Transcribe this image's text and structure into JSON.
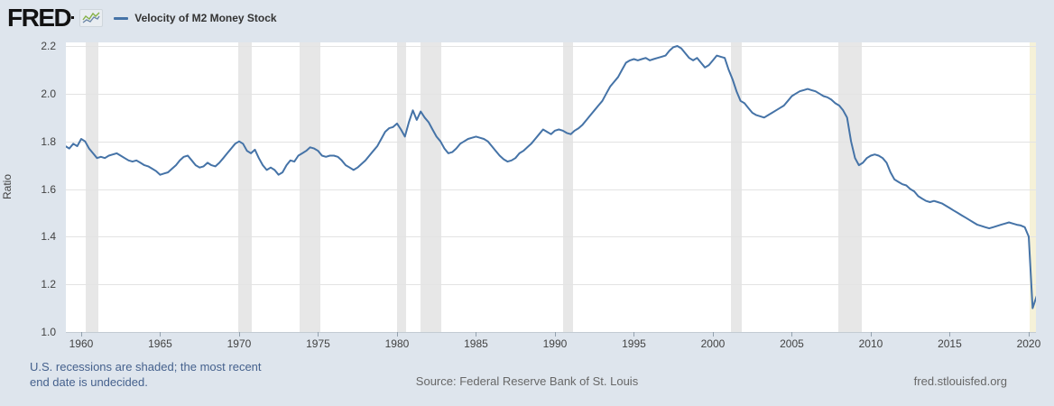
{
  "header": {
    "logo_text": "FRED",
    "legend_series": "Velocity of M2 Money Stock"
  },
  "footer": {
    "recession_note_line1": "U.S. recessions are shaded; the most recent",
    "recession_note_line2": "end date is undecided.",
    "source": "Source: Federal Reserve Bank of St. Louis",
    "site": "fred.stlouisfed.org"
  },
  "colors": {
    "line": "#4573a7",
    "recession_band": "#e7e7e7",
    "undecided_band": "#f5f1d8",
    "background": "#dee5ed",
    "plot_background": "#ffffff",
    "note_text": "#45618d",
    "logo_green": "#86b146",
    "logo_blue": "#6d87a8"
  },
  "chart_data": {
    "type": "line",
    "title": "Velocity of M2 Money Stock",
    "xlabel": "",
    "ylabel": "Ratio",
    "x_range": [
      1959.03,
      2020.46
    ],
    "y_range": [
      1.0,
      2.2
    ],
    "x_ticks": [
      1960,
      1965,
      1970,
      1975,
      1980,
      1985,
      1990,
      1995,
      2000,
      2005,
      2010,
      2015,
      2020
    ],
    "y_ticks": [
      1.0,
      1.2,
      1.4,
      1.6,
      1.8,
      2.0,
      2.2
    ],
    "grid": "horizontal",
    "legend_position": "top-left",
    "frequency": "quarterly",
    "start": 1959.0,
    "values": [
      1.78,
      1.77,
      1.79,
      1.78,
      1.81,
      1.8,
      1.77,
      1.75,
      1.73,
      1.735,
      1.73,
      1.74,
      1.745,
      1.75,
      1.74,
      1.73,
      1.72,
      1.715,
      1.72,
      1.71,
      1.7,
      1.695,
      1.685,
      1.675,
      1.66,
      1.665,
      1.67,
      1.685,
      1.7,
      1.72,
      1.735,
      1.74,
      1.72,
      1.7,
      1.69,
      1.695,
      1.71,
      1.7,
      1.695,
      1.71,
      1.73,
      1.75,
      1.77,
      1.79,
      1.8,
      1.79,
      1.76,
      1.75,
      1.765,
      1.73,
      1.7,
      1.68,
      1.69,
      1.68,
      1.66,
      1.67,
      1.7,
      1.72,
      1.715,
      1.74,
      1.75,
      1.76,
      1.775,
      1.77,
      1.76,
      1.74,
      1.735,
      1.74,
      1.74,
      1.735,
      1.72,
      1.7,
      1.69,
      1.68,
      1.69,
      1.705,
      1.72,
      1.74,
      1.76,
      1.78,
      1.81,
      1.84,
      1.855,
      1.86,
      1.875,
      1.85,
      1.82,
      1.88,
      1.93,
      1.89,
      1.925,
      1.9,
      1.88,
      1.85,
      1.82,
      1.8,
      1.77,
      1.75,
      1.755,
      1.77,
      1.79,
      1.8,
      1.81,
      1.815,
      1.82,
      1.815,
      1.81,
      1.8,
      1.78,
      1.76,
      1.74,
      1.725,
      1.715,
      1.72,
      1.73,
      1.75,
      1.76,
      1.775,
      1.79,
      1.81,
      1.83,
      1.85,
      1.84,
      1.83,
      1.845,
      1.85,
      1.845,
      1.835,
      1.83,
      1.845,
      1.855,
      1.87,
      1.89,
      1.91,
      1.93,
      1.95,
      1.97,
      2.0,
      2.03,
      2.05,
      2.07,
      2.1,
      2.13,
      2.14,
      2.145,
      2.14,
      2.145,
      2.15,
      2.14,
      2.145,
      2.15,
      2.155,
      2.16,
      2.18,
      2.195,
      2.2,
      2.19,
      2.17,
      2.15,
      2.14,
      2.15,
      2.13,
      2.11,
      2.12,
      2.14,
      2.16,
      2.155,
      2.15,
      2.1,
      2.06,
      2.01,
      1.97,
      1.96,
      1.94,
      1.92,
      1.91,
      1.905,
      1.9,
      1.91,
      1.92,
      1.93,
      1.94,
      1.95,
      1.97,
      1.99,
      2.0,
      2.01,
      2.015,
      2.02,
      2.015,
      2.01,
      2.0,
      1.99,
      1.985,
      1.975,
      1.96,
      1.95,
      1.93,
      1.9,
      1.8,
      1.73,
      1.7,
      1.71,
      1.73,
      1.74,
      1.745,
      1.74,
      1.73,
      1.71,
      1.67,
      1.64,
      1.63,
      1.62,
      1.615,
      1.6,
      1.59,
      1.57,
      1.56,
      1.55,
      1.545,
      1.55,
      1.545,
      1.54,
      1.53,
      1.52,
      1.51,
      1.5,
      1.49,
      1.48,
      1.47,
      1.46,
      1.45,
      1.445,
      1.44,
      1.435,
      1.44,
      1.445,
      1.45,
      1.455,
      1.46,
      1.455,
      1.45,
      1.447,
      1.44,
      1.4,
      1.1,
      1.15
    ],
    "recessions": [
      {
        "start": 1960.29,
        "end": 1961.08
      },
      {
        "start": 1969.92,
        "end": 1970.83
      },
      {
        "start": 1973.83,
        "end": 1975.17
      },
      {
        "start": 1980.0,
        "end": 1980.58
      },
      {
        "start": 1981.5,
        "end": 1982.83
      },
      {
        "start": 1990.5,
        "end": 1991.17
      },
      {
        "start": 2001.17,
        "end": 2001.83
      },
      {
        "start": 2007.92,
        "end": 2009.42
      },
      {
        "start": 2020.08,
        "end": null,
        "note": "end date undecided"
      }
    ]
  }
}
